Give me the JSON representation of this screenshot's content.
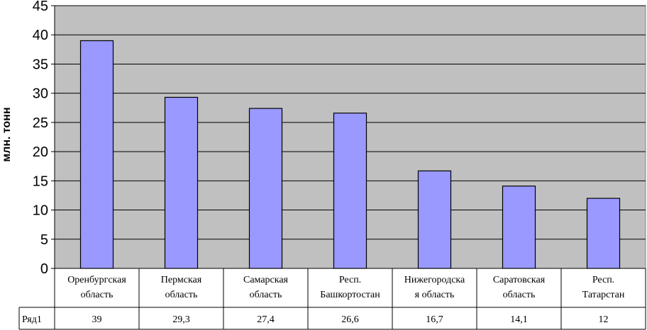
{
  "chart_data": {
    "type": "bar",
    "categories": [
      [
        "Оренбургская",
        "область"
      ],
      [
        "Пермская",
        "область"
      ],
      [
        "Самарская",
        "область"
      ],
      [
        "Респ.",
        "Башкортостан"
      ],
      [
        "Нижегородска",
        "я область"
      ],
      [
        "Саратовская",
        "область"
      ],
      [
        "Респ.",
        "Татарстан"
      ]
    ],
    "series": [
      {
        "name": "Ряд1",
        "values": [
          39,
          29.3,
          27.4,
          26.6,
          16.7,
          14.1,
          12
        ],
        "value_labels": [
          "39",
          "29,3",
          "27,4",
          "26,6",
          "16,7",
          "14,1",
          "12"
        ],
        "color": "#9999ff"
      }
    ],
    "ylabel": "млн. тонн",
    "ylim": [
      0,
      45
    ],
    "yticks": [
      0,
      5,
      10,
      15,
      20,
      25,
      30,
      35,
      40,
      45
    ],
    "grid": true,
    "plot_background": "#c0c0c0",
    "data_table": true
  }
}
